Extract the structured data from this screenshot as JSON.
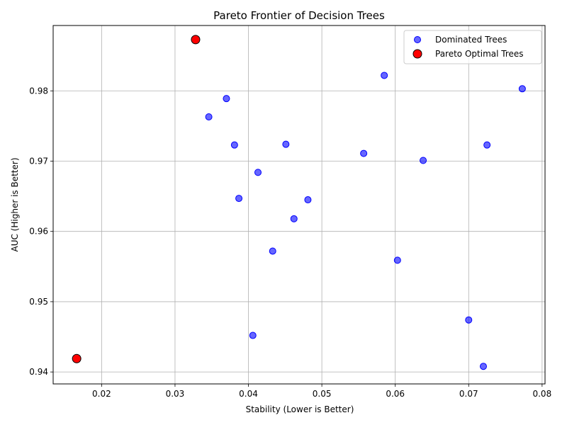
{
  "chart_data": {
    "type": "scatter",
    "title": "Pareto Frontier of Decision Trees",
    "xlabel": "Stability (Lower is Better)",
    "ylabel": "AUC (Higher is Better)",
    "xlim": [
      0.0134,
      0.0804
    ],
    "ylim": [
      0.9383,
      0.9893
    ],
    "xticks": [
      0.02,
      0.03,
      0.04,
      0.05,
      0.06,
      0.07,
      0.08
    ],
    "yticks": [
      0.94,
      0.95,
      0.96,
      0.97,
      0.98
    ],
    "xtick_labels": [
      "0.02",
      "0.03",
      "0.04",
      "0.05",
      "0.06",
      "0.07",
      "0.08"
    ],
    "ytick_labels": [
      "0.94",
      "0.95",
      "0.96",
      "0.97",
      "0.98"
    ],
    "grid": true,
    "legend_position": "top-right",
    "series": [
      {
        "name": "Dominated Trees",
        "color": "#0000ff",
        "points": [
          {
            "x": 0.0585,
            "y": 0.9822
          },
          {
            "x": 0.0773,
            "y": 0.9803
          },
          {
            "x": 0.037,
            "y": 0.9789
          },
          {
            "x": 0.0346,
            "y": 0.9763
          },
          {
            "x": 0.0381,
            "y": 0.9723
          },
          {
            "x": 0.0451,
            "y": 0.9724
          },
          {
            "x": 0.0557,
            "y": 0.9711
          },
          {
            "x": 0.0725,
            "y": 0.9723
          },
          {
            "x": 0.0638,
            "y": 0.9701
          },
          {
            "x": 0.0413,
            "y": 0.9684
          },
          {
            "x": 0.0387,
            "y": 0.9647
          },
          {
            "x": 0.0481,
            "y": 0.9645
          },
          {
            "x": 0.0462,
            "y": 0.9618
          },
          {
            "x": 0.0433,
            "y": 0.9572
          },
          {
            "x": 0.0603,
            "y": 0.9559
          },
          {
            "x": 0.07,
            "y": 0.9474
          },
          {
            "x": 0.0406,
            "y": 0.9452
          },
          {
            "x": 0.072,
            "y": 0.9408
          }
        ]
      },
      {
        "name": "Pareto Optimal Trees",
        "color": "#ff0000",
        "points": [
          {
            "x": 0.0328,
            "y": 0.9873
          },
          {
            "x": 0.0166,
            "y": 0.9419
          }
        ]
      }
    ]
  }
}
